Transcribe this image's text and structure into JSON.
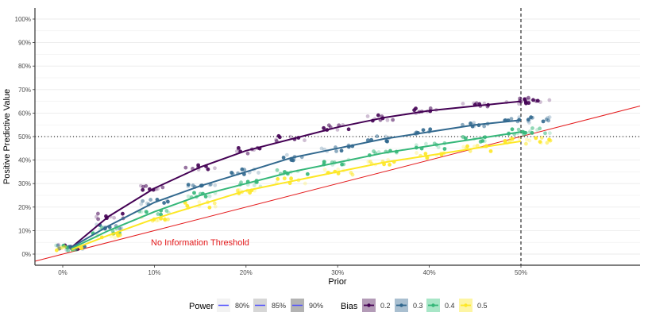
{
  "chart_data": {
    "type": "scatter",
    "title": "",
    "xlabel": "Prior",
    "ylabel": "Positive Predictive Value",
    "xlim": [
      -0.03,
      0.63
    ],
    "ylim": [
      -0.03,
      1.05
    ],
    "x_ticks": [
      0,
      0.1,
      0.2,
      0.3,
      0.4,
      0.5
    ],
    "x_tick_labels": [
      "0%",
      "10%",
      "20%",
      "30%",
      "40%",
      "50%"
    ],
    "y_ticks": [
      0,
      0.1,
      0.2,
      0.3,
      0.4,
      0.5,
      0.6,
      0.7,
      0.8,
      0.9,
      1.0
    ],
    "y_tick_labels": [
      "0%",
      "10%",
      "20%",
      "30%",
      "40%",
      "50%",
      "60%",
      "70%",
      "80%",
      "90%",
      "100%"
    ],
    "grid": true,
    "reference_lines": {
      "no_information_threshold": {
        "label": "No Information Threshold",
        "slope": 1,
        "intercept": 0,
        "color": "#e41a1c"
      },
      "hline": {
        "y": 0.5,
        "style": "dotted",
        "color": "#000000"
      },
      "vline": {
        "x": 0.5,
        "style": "dashed",
        "color": "#000000"
      }
    },
    "priors": [
      0.01,
      0.05,
      0.1,
      0.15,
      0.2,
      0.25,
      0.3,
      0.35,
      0.4,
      0.45,
      0.5
    ],
    "series": [
      {
        "name": "0.2",
        "color": "#440154",
        "values": [
          0.03,
          0.16,
          0.28,
          0.37,
          0.44,
          0.49,
          0.54,
          0.58,
          0.61,
          0.63,
          0.65
        ]
      },
      {
        "name": "0.3",
        "color": "#31688e",
        "values": [
          0.03,
          0.12,
          0.22,
          0.29,
          0.35,
          0.41,
          0.45,
          0.49,
          0.52,
          0.55,
          0.57
        ]
      },
      {
        "name": "0.4",
        "color": "#35b779",
        "values": [
          0.025,
          0.1,
          0.18,
          0.25,
          0.3,
          0.35,
          0.39,
          0.43,
          0.46,
          0.49,
          0.52
        ]
      },
      {
        "name": "0.5",
        "color": "#fde725",
        "values": [
          0.02,
          0.08,
          0.15,
          0.21,
          0.27,
          0.31,
          0.35,
          0.39,
          0.42,
          0.45,
          0.48
        ]
      }
    ],
    "legend": {
      "placement": "bottom",
      "power": {
        "title": "Power",
        "entries": [
          {
            "label": "80%",
            "fill": "#f2f2f2"
          },
          {
            "label": "85%",
            "fill": "#d6d6d6"
          },
          {
            "label": "90%",
            "fill": "#b3b3b3"
          }
        ],
        "line_color": "#4d4dff"
      },
      "bias": {
        "title": "Bias",
        "entries": [
          {
            "label": "0.2",
            "color": "#440154",
            "fill": "#b39bb7"
          },
          {
            "label": "0.3",
            "color": "#31688e",
            "fill": "#a9bfd0"
          },
          {
            "label": "0.4",
            "color": "#35b779",
            "fill": "#a8e6c7"
          },
          {
            "label": "0.5",
            "color": "#fde725",
            "fill": "#fdf5a3"
          }
        ]
      }
    }
  }
}
